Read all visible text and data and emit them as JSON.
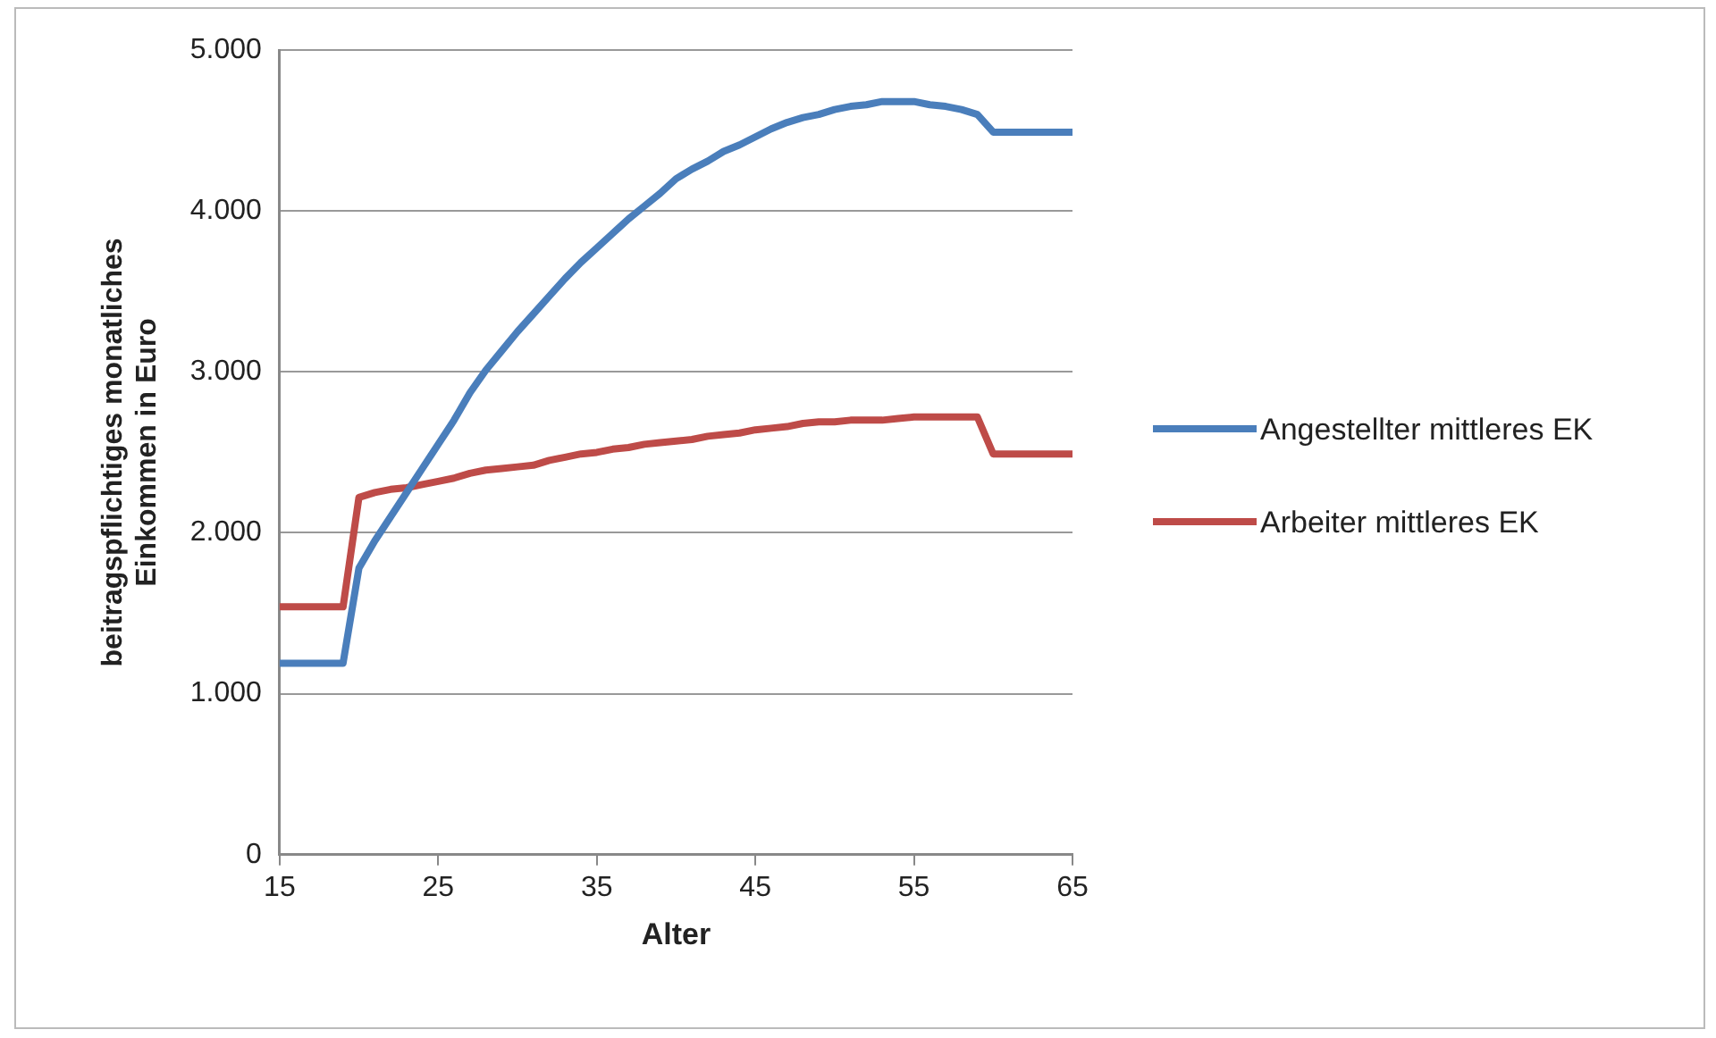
{
  "chart_data": {
    "type": "line",
    "xlabel": "Alter",
    "ylabel": "beitragspflichtiges monatliches Einkommen in Euro",
    "x": [
      15,
      16,
      17,
      18,
      19,
      20,
      21,
      22,
      23,
      24,
      25,
      26,
      27,
      28,
      29,
      30,
      31,
      32,
      33,
      34,
      35,
      36,
      37,
      38,
      39,
      40,
      41,
      42,
      43,
      44,
      45,
      46,
      47,
      48,
      49,
      50,
      51,
      52,
      53,
      54,
      55,
      56,
      57,
      58,
      59,
      60,
      61,
      62,
      63,
      64,
      65
    ],
    "series": [
      {
        "name": "Angestellter mittleres EK",
        "color": "#4a7ebb",
        "values": [
          1190,
          1190,
          1190,
          1190,
          1190,
          1780,
          1950,
          2100,
          2250,
          2400,
          2550,
          2700,
          2870,
          3010,
          3130,
          3250,
          3360,
          3470,
          3580,
          3680,
          3770,
          3860,
          3950,
          4030,
          4110,
          4200,
          4260,
          4310,
          4370,
          4410,
          4460,
          4510,
          4550,
          4580,
          4600,
          4630,
          4650,
          4660,
          4680,
          4680,
          4680,
          4660,
          4650,
          4630,
          4600,
          4490,
          4490,
          4490,
          4490,
          4490,
          4490
        ]
      },
      {
        "name": "Arbeiter mittleres EK",
        "color": "#be4b48",
        "values": [
          1540,
          1540,
          1540,
          1540,
          1540,
          2220,
          2250,
          2270,
          2280,
          2300,
          2320,
          2340,
          2370,
          2390,
          2400,
          2410,
          2420,
          2450,
          2470,
          2490,
          2500,
          2520,
          2530,
          2550,
          2560,
          2570,
          2580,
          2600,
          2610,
          2620,
          2640,
          2650,
          2660,
          2680,
          2690,
          2690,
          2700,
          2700,
          2700,
          2710,
          2720,
          2720,
          2720,
          2720,
          2720,
          2490,
          2490,
          2490,
          2490,
          2490,
          2490
        ]
      }
    ],
    "xlim": [
      15,
      65
    ],
    "xticks": [
      15,
      25,
      35,
      45,
      55,
      65
    ],
    "ylim": [
      0,
      5000
    ],
    "yticks": [
      0,
      {
        "value": 1000,
        "label": "1.000"
      },
      {
        "value": 2000,
        "label": "2.000"
      },
      {
        "value": 3000,
        "label": "3.000"
      },
      {
        "value": 4000,
        "label": "4.000"
      },
      {
        "value": 5000,
        "label": "5.000"
      }
    ],
    "grid": "y",
    "legend": "right",
    "marker": "none",
    "line_style": "solid"
  }
}
